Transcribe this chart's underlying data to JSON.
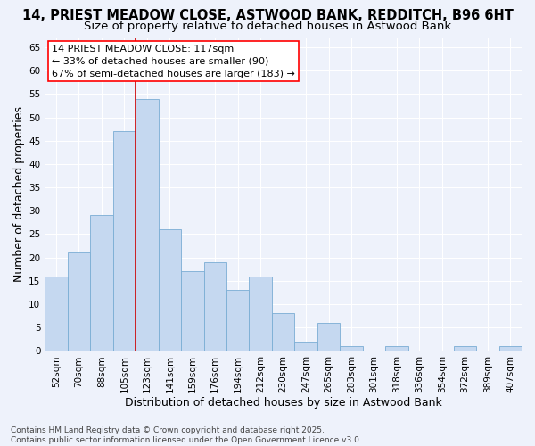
{
  "title1": "14, PRIEST MEADOW CLOSE, ASTWOOD BANK, REDDITCH, B96 6HT",
  "title2": "Size of property relative to detached houses in Astwood Bank",
  "xlabel": "Distribution of detached houses by size in Astwood Bank",
  "ylabel": "Number of detached properties",
  "categories": [
    "52sqm",
    "70sqm",
    "88sqm",
    "105sqm",
    "123sqm",
    "141sqm",
    "159sqm",
    "176sqm",
    "194sqm",
    "212sqm",
    "230sqm",
    "247sqm",
    "265sqm",
    "283sqm",
    "301sqm",
    "318sqm",
    "336sqm",
    "354sqm",
    "372sqm",
    "389sqm",
    "407sqm"
  ],
  "values": [
    16,
    21,
    29,
    47,
    54,
    26,
    17,
    19,
    13,
    16,
    8,
    2,
    6,
    1,
    0,
    1,
    0,
    0,
    1,
    0,
    1
  ],
  "bar_color": "#c5d8f0",
  "bar_edge_color": "#7aadd4",
  "background_color": "#eef2fb",
  "grid_color": "#ffffff",
  "vline_color": "#cc0000",
  "vline_x_pos": 3.5,
  "annotation_text": "14 PRIEST MEADOW CLOSE: 117sqm\n← 33% of detached houses are smaller (90)\n67% of semi-detached houses are larger (183) →",
  "ylim": [
    0,
    67
  ],
  "yticks": [
    0,
    5,
    10,
    15,
    20,
    25,
    30,
    35,
    40,
    45,
    50,
    55,
    60,
    65
  ],
  "footer": "Contains HM Land Registry data © Crown copyright and database right 2025.\nContains public sector information licensed under the Open Government Licence v3.0.",
  "title_fontsize": 10.5,
  "subtitle_fontsize": 9.5,
  "axis_label_fontsize": 9,
  "tick_fontsize": 7.5,
  "annotation_fontsize": 8,
  "footer_fontsize": 6.5
}
